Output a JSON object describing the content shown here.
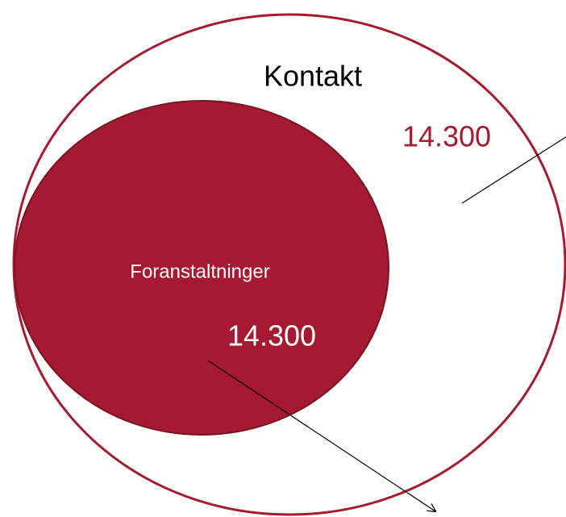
{
  "outer": {
    "label": "Kontakt",
    "value": "14.300"
  },
  "inner": {
    "label": "Foranstaltninger",
    "value": "14.300"
  }
}
